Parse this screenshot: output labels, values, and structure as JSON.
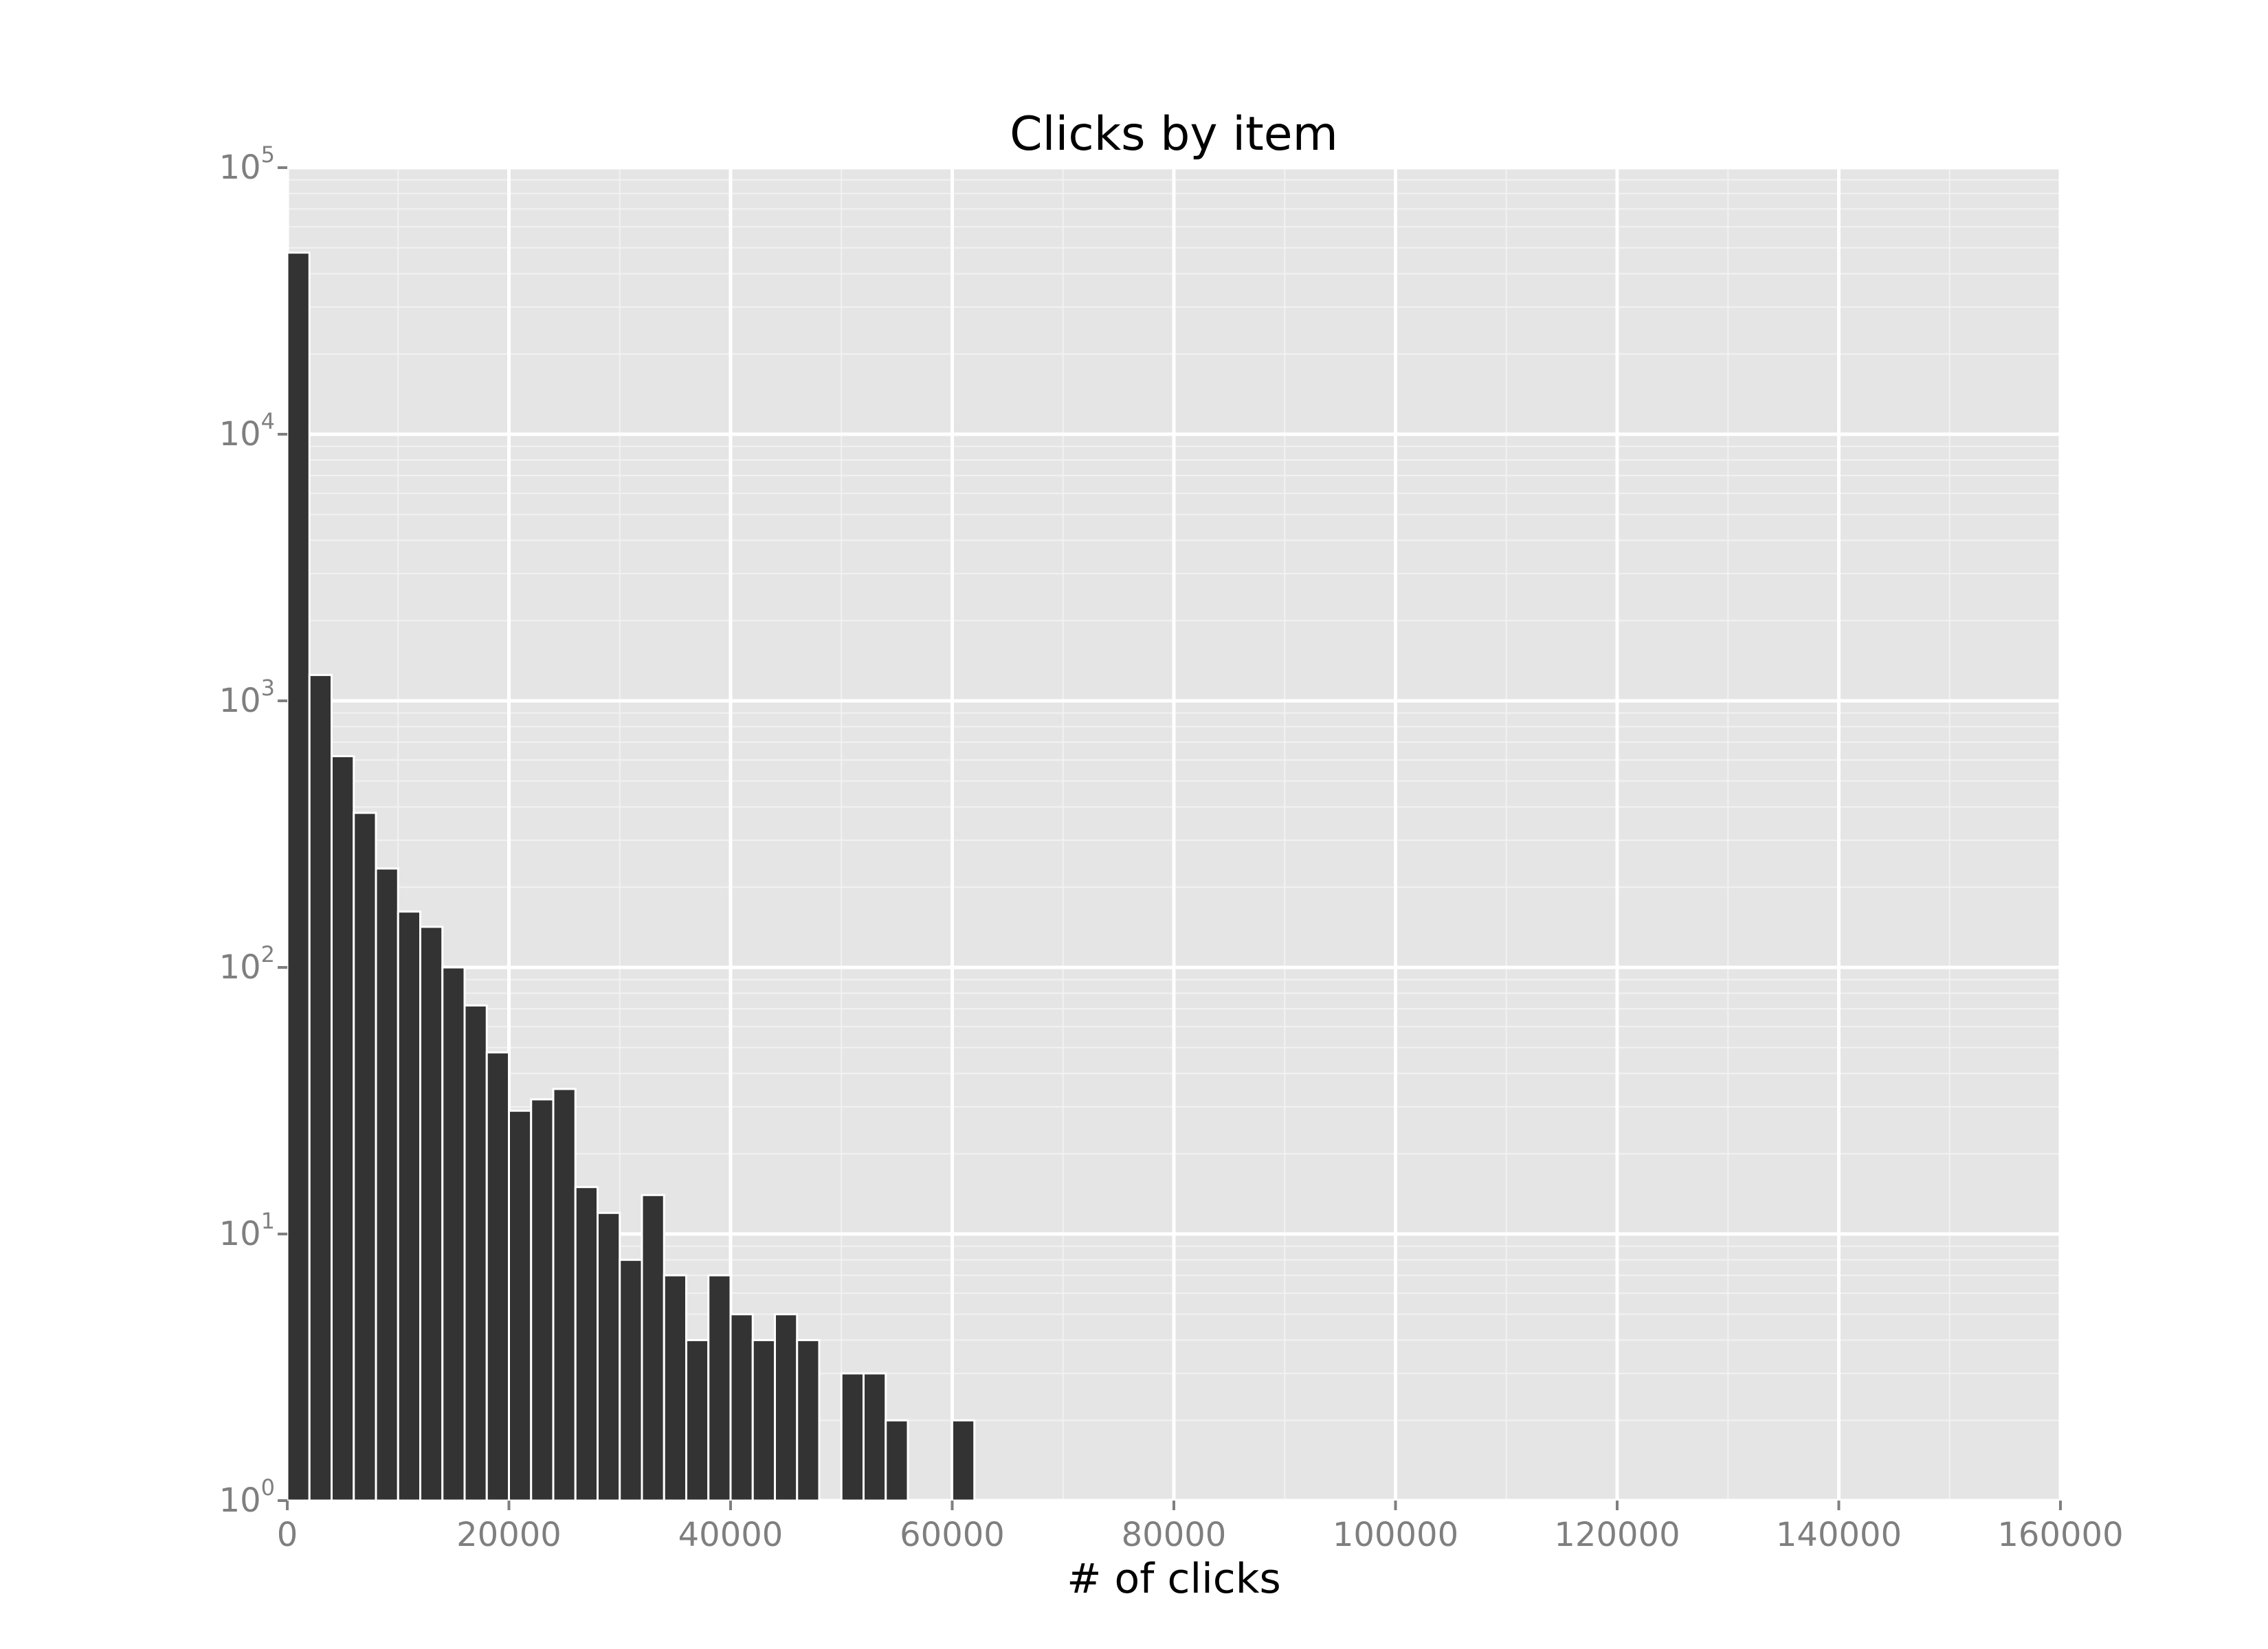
{
  "chart_data": {
    "type": "bar",
    "title": "Clicks by item",
    "xlabel": "# of clicks",
    "ylabel": "",
    "yscale": "log",
    "xlim": [
      0,
      160000
    ],
    "ylim": [
      1,
      100000
    ],
    "bin_width": 2000,
    "x_ticks": [
      "0",
      "20000",
      "40000",
      "60000",
      "80000",
      "100000",
      "120000",
      "140000",
      "160000"
    ],
    "x_tick_values": [
      0,
      20000,
      40000,
      60000,
      80000,
      100000,
      120000,
      140000,
      160000
    ],
    "y_ticks": [
      {
        "base": "10",
        "exp": "0",
        "value": 1
      },
      {
        "base": "10",
        "exp": "1",
        "value": 10
      },
      {
        "base": "10",
        "exp": "2",
        "value": 100
      },
      {
        "base": "10",
        "exp": "3",
        "value": 1000
      },
      {
        "base": "10",
        "exp": "4",
        "value": 10000
      },
      {
        "base": "10",
        "exp": "5",
        "value": 100000
      }
    ],
    "bars": [
      {
        "x": 0,
        "count": 48000
      },
      {
        "x": 2000,
        "count": 1250
      },
      {
        "x": 4000,
        "count": 620
      },
      {
        "x": 6000,
        "count": 380
      },
      {
        "x": 8000,
        "count": 235
      },
      {
        "x": 10000,
        "count": 162
      },
      {
        "x": 12000,
        "count": 142
      },
      {
        "x": 14000,
        "count": 100
      },
      {
        "x": 16000,
        "count": 72
      },
      {
        "x": 18000,
        "count": 48
      },
      {
        "x": 20000,
        "count": 29
      },
      {
        "x": 22000,
        "count": 32
      },
      {
        "x": 24000,
        "count": 35
      },
      {
        "x": 26000,
        "count": 15
      },
      {
        "x": 28000,
        "count": 12
      },
      {
        "x": 30000,
        "count": 8
      },
      {
        "x": 32000,
        "count": 14
      },
      {
        "x": 34000,
        "count": 7
      },
      {
        "x": 36000,
        "count": 4
      },
      {
        "x": 38000,
        "count": 7
      },
      {
        "x": 40000,
        "count": 5
      },
      {
        "x": 42000,
        "count": 4
      },
      {
        "x": 44000,
        "count": 5
      },
      {
        "x": 46000,
        "count": 4
      },
      {
        "x": 50000,
        "count": 3
      },
      {
        "x": 52000,
        "count": 3
      },
      {
        "x": 54000,
        "count": 2
      },
      {
        "x": 60000,
        "count": 2
      }
    ],
    "colors": {
      "panel": "#e5e5e5",
      "bar": "#333333",
      "bar_edge": "#ffffff",
      "grid_major": "#ffffff",
      "grid_minor": "#f2f2f2",
      "tick": "#7f7f7f"
    }
  }
}
